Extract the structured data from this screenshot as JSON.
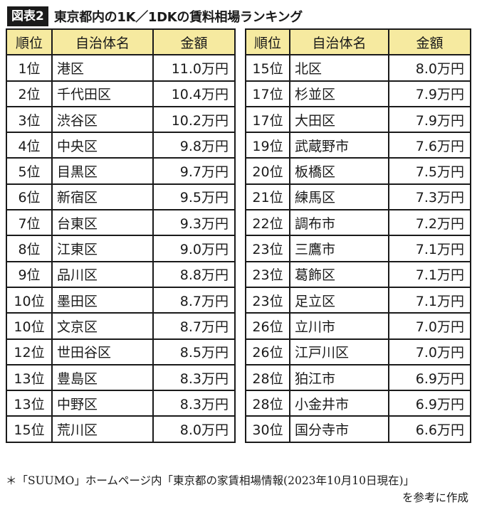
{
  "figure": {
    "badge": "図表2",
    "title": "東京都内の1K／1DKの賃料相場ランキング"
  },
  "columns": {
    "rank": "順位",
    "name": "自治体名",
    "amount": "金額"
  },
  "left_rows": [
    {
      "rank": "1位",
      "name": "港区",
      "amount": "11.0万円"
    },
    {
      "rank": "2位",
      "name": "千代田区",
      "amount": "10.4万円"
    },
    {
      "rank": "3位",
      "name": "渋谷区",
      "amount": "10.2万円"
    },
    {
      "rank": "4位",
      "name": "中央区",
      "amount": "9.8万円"
    },
    {
      "rank": "5位",
      "name": "目黒区",
      "amount": "9.7万円"
    },
    {
      "rank": "6位",
      "name": "新宿区",
      "amount": "9.5万円"
    },
    {
      "rank": "7位",
      "name": "台東区",
      "amount": "9.3万円"
    },
    {
      "rank": "8位",
      "name": "江東区",
      "amount": "9.0万円"
    },
    {
      "rank": "9位",
      "name": "品川区",
      "amount": "8.8万円"
    },
    {
      "rank": "10位",
      "name": "墨田区",
      "amount": "8.7万円"
    },
    {
      "rank": "10位",
      "name": "文京区",
      "amount": "8.7万円"
    },
    {
      "rank": "12位",
      "name": "世田谷区",
      "amount": "8.5万円"
    },
    {
      "rank": "13位",
      "name": "豊島区",
      "amount": "8.3万円"
    },
    {
      "rank": "13位",
      "name": "中野区",
      "amount": "8.3万円"
    },
    {
      "rank": "15位",
      "name": "荒川区",
      "amount": "8.0万円"
    }
  ],
  "right_rows": [
    {
      "rank": "15位",
      "name": "北区",
      "amount": "8.0万円"
    },
    {
      "rank": "17位",
      "name": "杉並区",
      "amount": "7.9万円"
    },
    {
      "rank": "17位",
      "name": "大田区",
      "amount": "7.9万円"
    },
    {
      "rank": "19位",
      "name": "武蔵野市",
      "amount": "7.6万円"
    },
    {
      "rank": "20位",
      "name": "板橋区",
      "amount": "7.5万円"
    },
    {
      "rank": "21位",
      "name": "練馬区",
      "amount": "7.3万円"
    },
    {
      "rank": "22位",
      "name": "調布市",
      "amount": "7.2万円"
    },
    {
      "rank": "23位",
      "name": "三鷹市",
      "amount": "7.1万円"
    },
    {
      "rank": "23位",
      "name": "葛飾区",
      "amount": "7.1万円"
    },
    {
      "rank": "23位",
      "name": "足立区",
      "amount": "7.1万円"
    },
    {
      "rank": "26位",
      "name": "立川市",
      "amount": "7.0万円"
    },
    {
      "rank": "26位",
      "name": "江戸川区",
      "amount": "7.0万円"
    },
    {
      "rank": "28位",
      "name": "狛江市",
      "amount": "6.9万円"
    },
    {
      "rank": "28位",
      "name": "小金井市",
      "amount": "6.9万円"
    },
    {
      "rank": "30位",
      "name": "国分寺市",
      "amount": "6.6万円"
    }
  ],
  "source_note": {
    "line1": "＊「SUUMO」ホームページ内「東京都の家賃相場情報(2023年10月10日現在)」",
    "line2": "を参考に作成"
  },
  "colors": {
    "header_fill": "#f6eaa0",
    "border": "#1a1a1a",
    "badge_fill": "#1a1a1a"
  }
}
